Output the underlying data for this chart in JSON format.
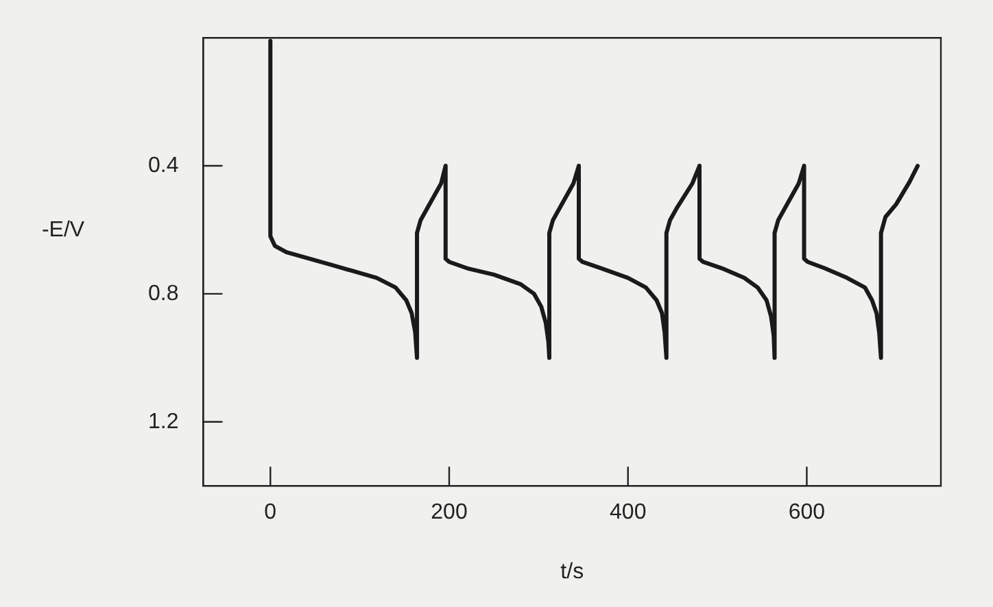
{
  "chart_data": {
    "type": "line",
    "xlabel": "t/s",
    "ylabel": "-E/V",
    "xlim": [
      -75,
      750
    ],
    "ylim": [
      1.4,
      0
    ],
    "xticks": [
      0,
      200,
      400,
      600
    ],
    "yticks": [
      0.4,
      0.8,
      1.2
    ],
    "grid": false,
    "legend": false,
    "marker": "none",
    "line_style": "solid",
    "series": [
      {
        "color": "#1a1a1a",
        "x": [
          0,
          0,
          5,
          18,
          69,
          119,
          140,
          152,
          158,
          162,
          164,
          164,
          168,
          176,
          191,
          196,
          196,
          200,
          220,
          250,
          280,
          295,
          303,
          308,
          311,
          312,
          312,
          316,
          324,
          339,
          345,
          345,
          349,
          370,
          400,
          420,
          432,
          438,
          441,
          443,
          443,
          447,
          455,
          472,
          480,
          480,
          484,
          505,
          530,
          545,
          555,
          560,
          563,
          564,
          564,
          568,
          576,
          591,
          597,
          597,
          601,
          620,
          645,
          665,
          673,
          678,
          681,
          683,
          683,
          688,
          700,
          715,
          724
        ],
        "values": [
          0.01,
          0.62,
          0.65,
          0.67,
          0.71,
          0.75,
          0.78,
          0.82,
          0.86,
          0.92,
          1.0,
          0.61,
          0.57,
          0.53,
          0.455,
          0.4,
          0.69,
          0.7,
          0.72,
          0.74,
          0.77,
          0.8,
          0.84,
          0.89,
          0.95,
          1.0,
          0.61,
          0.57,
          0.53,
          0.455,
          0.4,
          0.69,
          0.7,
          0.72,
          0.75,
          0.78,
          0.82,
          0.86,
          0.92,
          1.0,
          0.61,
          0.57,
          0.53,
          0.455,
          0.4,
          0.69,
          0.7,
          0.72,
          0.75,
          0.78,
          0.82,
          0.87,
          0.93,
          1.0,
          0.61,
          0.57,
          0.53,
          0.455,
          0.4,
          0.69,
          0.7,
          0.72,
          0.75,
          0.78,
          0.82,
          0.86,
          0.92,
          1.0,
          0.61,
          0.56,
          0.52,
          0.45,
          0.4
        ]
      }
    ]
  }
}
